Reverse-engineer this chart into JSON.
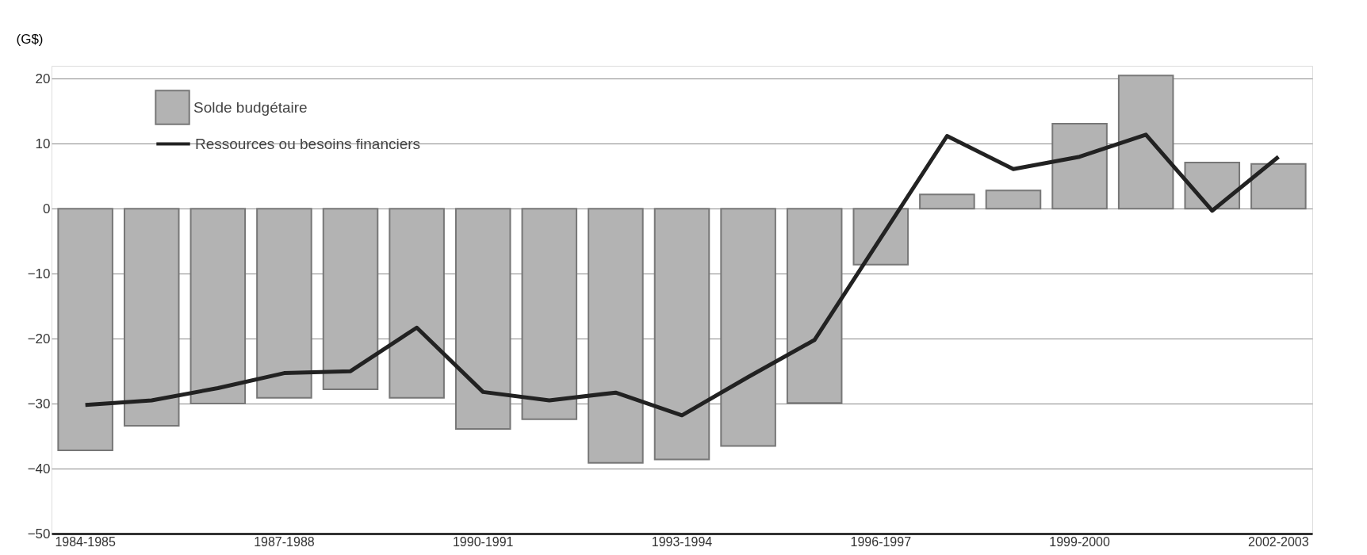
{
  "chart_data": {
    "type": "bar",
    "ylabel": "(G$)",
    "categories": [
      "1984-1985",
      null,
      null,
      "1987-1988",
      null,
      null,
      "1990-1991",
      null,
      null,
      "1993-1994",
      null,
      null,
      "1996-1997",
      null,
      null,
      "1999-2000",
      null,
      null,
      "2002-2003"
    ],
    "series": [
      {
        "name": "Solde budgétaire",
        "color": "#b3b3b3",
        "values": [
          -37.2,
          -33.4,
          -30.0,
          -29.1,
          -27.8,
          -29.1,
          -33.9,
          -32.4,
          -39.1,
          -38.6,
          -36.5,
          -29.9,
          -8.6,
          2.2,
          2.8,
          13.1,
          20.5,
          7.1,
          6.9
        ]
      },
      {
        "name": "Ressources ou besoins financiers",
        "type": "line",
        "color": "#222222",
        "values": [
          -30.2,
          -29.5,
          -27.6,
          -25.3,
          -25.0,
          -18.3,
          -28.2,
          -29.5,
          -28.3,
          -31.8,
          -25.9,
          -20.2,
          -4.5,
          11.2,
          6.1,
          8.0,
          11.4,
          -0.3,
          8.0
        ]
      }
    ],
    "ylim": [
      -50,
      22
    ],
    "yticks": [
      -50,
      -40,
      -30,
      -20,
      -10,
      0,
      10,
      20
    ],
    "grid": "y",
    "legend": "top left"
  }
}
